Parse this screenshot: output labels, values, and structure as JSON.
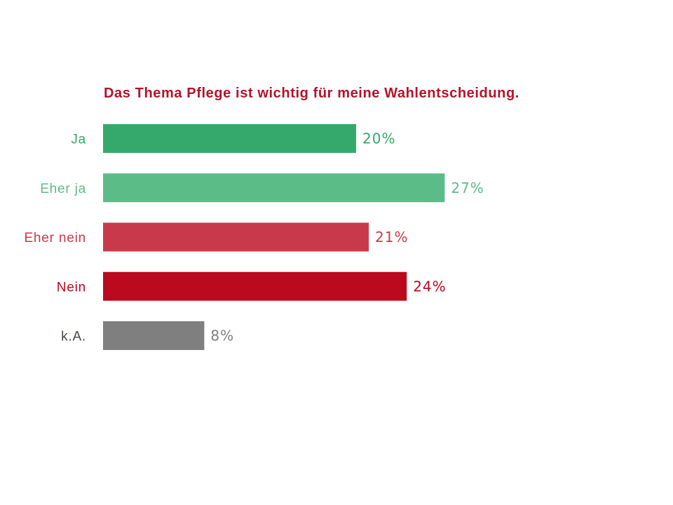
{
  "chart_data": {
    "type": "bar",
    "orientation": "horizontal",
    "title": "Das Thema Pflege ist wichtig für meine Wahlentscheidung.",
    "categories": [
      "Ja",
      "Eher ja",
      "Eher nein",
      "Nein",
      "k.A."
    ],
    "values": [
      20,
      27,
      21,
      24,
      8
    ],
    "data_labels": [
      "20%",
      "27%",
      "21%",
      "24%",
      "8%"
    ],
    "grid": false,
    "title_color": "#b3132b",
    "bar_colors": [
      "#35a96b",
      "#5cbc88",
      "#c83a4b",
      "#bb0a1e",
      "#7f7f7f"
    ],
    "category_label_colors": [
      "#35a96b",
      "#5cbc88",
      "#c83a4b",
      "#bb0a1e",
      "#3f4a3f"
    ]
  }
}
